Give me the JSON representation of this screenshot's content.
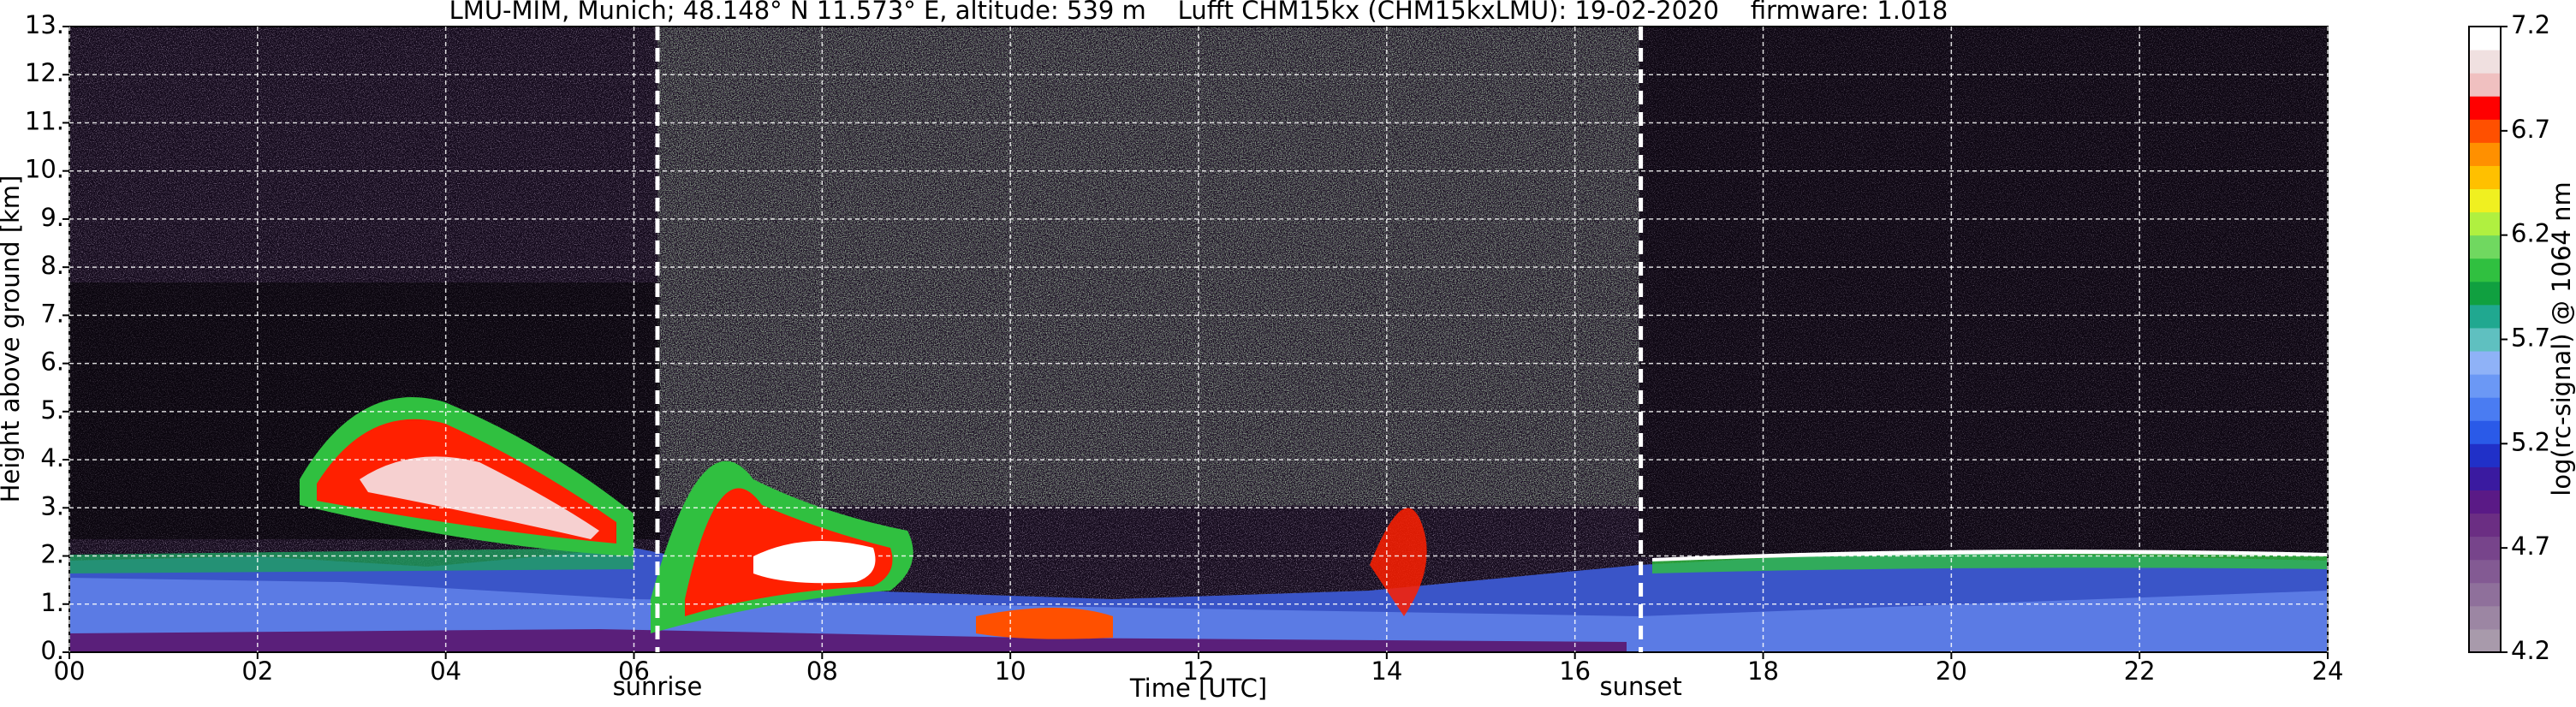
{
  "chart_data": {
    "type": "heatmap",
    "title": "LMU-MIM, Munich; 48.148° N 11.573° E, altitude: 539 m    Lufft CHM15kx (CHM15kxLMU): 19-02-2020    firmware: 1.018",
    "x_label": "Time [UTC]",
    "y_label": "Height above ground [km]",
    "xlim": [
      0,
      24
    ],
    "ylim": [
      0,
      13
    ],
    "xticks": [
      {
        "value": 0,
        "label": "00"
      },
      {
        "value": 2,
        "label": "02"
      },
      {
        "value": 4,
        "label": "04"
      },
      {
        "value": 6,
        "label": "06"
      },
      {
        "value": 8,
        "label": "08"
      },
      {
        "value": 10,
        "label": "10"
      },
      {
        "value": 12,
        "label": "12"
      },
      {
        "value": 14,
        "label": "14"
      },
      {
        "value": 16,
        "label": "16"
      },
      {
        "value": 18,
        "label": "18"
      },
      {
        "value": 20,
        "label": "20"
      },
      {
        "value": 22,
        "label": "22"
      },
      {
        "value": 24,
        "label": "24"
      }
    ],
    "yticks": [
      {
        "value": 0,
        "label": "0."
      },
      {
        "value": 1,
        "label": "1."
      },
      {
        "value": 2,
        "label": "2."
      },
      {
        "value": 3,
        "label": "3."
      },
      {
        "value": 4,
        "label": "4."
      },
      {
        "value": 5,
        "label": "5."
      },
      {
        "value": 6,
        "label": "6."
      },
      {
        "value": 7,
        "label": "7."
      },
      {
        "value": 8,
        "label": "8."
      },
      {
        "value": 9,
        "label": "9."
      },
      {
        "value": 10,
        "label": "10."
      },
      {
        "value": 11,
        "label": "11."
      },
      {
        "value": 12,
        "label": "12."
      },
      {
        "value": 13,
        "label": "13."
      }
    ],
    "grid": true,
    "annotations": [
      {
        "text": "sunrise",
        "x": 6.25
      },
      {
        "text": "sunset",
        "x": 16.7
      }
    ],
    "colorbar": {
      "label": "log(rc-signal) @ 1064 nm",
      "lim": [
        4.2,
        7.2
      ],
      "ticks": [
        4.2,
        4.7,
        5.2,
        5.7,
        6.2,
        6.7,
        7.2
      ],
      "colors": [
        "#a89aab",
        "#9c86a3",
        "#8f709b",
        "#835a93",
        "#77448b",
        "#6b2e83",
        "#5a1a86",
        "#3a1aa0",
        "#2030c8",
        "#2a5ae8",
        "#4a7cf2",
        "#6b98f5",
        "#8fb2f7",
        "#5fc0c0",
        "#20a890",
        "#10a040",
        "#30c040",
        "#70d860",
        "#b0f040",
        "#f0f020",
        "#ffc000",
        "#ff9000",
        "#ff5000",
        "#ff0000",
        "#f0c0c0",
        "#f0e0e0",
        "#ffffff"
      ]
    }
  }
}
